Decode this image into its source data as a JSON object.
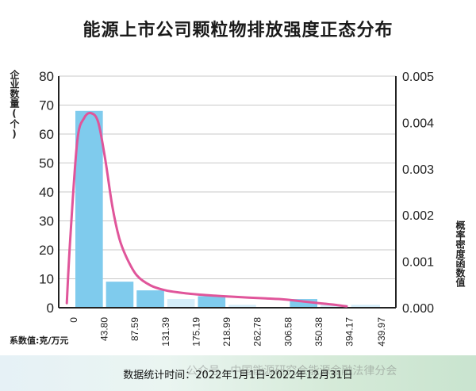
{
  "title": "能源上市公司颗粒物排放强度正态分布",
  "ylabel_left": "企业数量(个)",
  "ylabel_right": "概率密度函数值",
  "xlabel": "系数值:克/万元",
  "footer_time": "数据统计时间：2022年1月1日-2022年12月31日",
  "watermark": "公众号 · 中国能源研究会能源金融法律分会",
  "colors": {
    "bar_dark": "#7fcbed",
    "bar_light": "#d4edf9",
    "curve": "#e0559a"
  },
  "chart_data": {
    "type": "bar",
    "title": "能源上市公司颗粒物排放强度正态分布",
    "xlabel": "系数值:克/万元",
    "ylabel": "企业数量(个)",
    "y2label": "概率密度函数值",
    "ylim": [
      0,
      80
    ],
    "y2lim": [
      0,
      0.005
    ],
    "y_ticks": [
      "0",
      "10",
      "20",
      "30",
      "40",
      "50",
      "60",
      "70",
      "80"
    ],
    "y2_ticks": [
      "0.000",
      "0.001",
      "0.002",
      "0.003",
      "0.004",
      "0.005"
    ],
    "x_tick_labels": [
      "0",
      "43.80",
      "87.59",
      "131.39",
      "175.19",
      "218.99",
      "262.78",
      "306.58",
      "350.38",
      "394.17",
      "439.97"
    ],
    "bins": [
      {
        "from": 0,
        "to": 43.8,
        "count": 68
      },
      {
        "from": 43.8,
        "to": 87.59,
        "count": 9
      },
      {
        "from": 87.59,
        "to": 131.39,
        "count": 6
      },
      {
        "from": 131.39,
        "to": 175.19,
        "count": 3
      },
      {
        "from": 175.19,
        "to": 218.99,
        "count": 4
      },
      {
        "from": 218.99,
        "to": 262.78,
        "count": 1
      },
      {
        "from": 262.78,
        "to": 306.58,
        "count": 0
      },
      {
        "from": 306.58,
        "to": 350.38,
        "count": 3
      },
      {
        "from": 350.38,
        "to": 394.17,
        "count": 1
      },
      {
        "from": 394.17,
        "to": 439.97,
        "count": 1
      }
    ],
    "density_curve": [
      [
        -10,
        0.0001
      ],
      [
        -5,
        0.0015
      ],
      [
        5,
        0.0036
      ],
      [
        15,
        0.0041
      ],
      [
        25,
        0.0042
      ],
      [
        35,
        0.004
      ],
      [
        45,
        0.0032
      ],
      [
        55,
        0.0022
      ],
      [
        65,
        0.0015
      ],
      [
        75,
        0.0011
      ],
      [
        90,
        0.0007
      ],
      [
        110,
        0.00048
      ],
      [
        130,
        0.00038
      ],
      [
        150,
        0.00033
      ],
      [
        175,
        0.00029
      ],
      [
        200,
        0.00026
      ],
      [
        225,
        0.00024
      ],
      [
        250,
        0.00022
      ],
      [
        275,
        0.0002
      ],
      [
        300,
        0.00018
      ],
      [
        325,
        0.00014
      ],
      [
        350,
        0.0001
      ],
      [
        375,
        6e-05
      ],
      [
        390,
        3e-05
      ]
    ]
  }
}
